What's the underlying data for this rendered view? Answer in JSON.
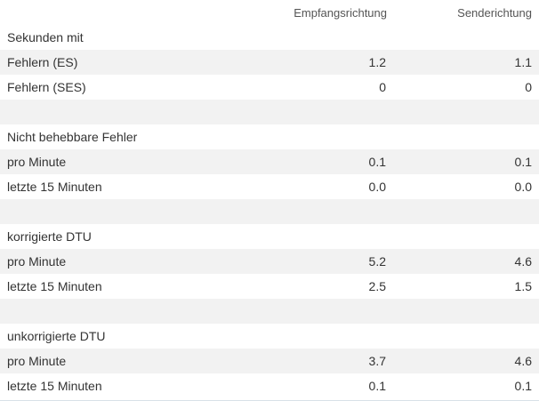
{
  "header": {
    "col_rx": "Empfangsrichtung",
    "col_tx": "Senderichtung"
  },
  "rows": [
    {
      "label": "Sekunden mit",
      "rx": "",
      "tx": ""
    },
    {
      "label": "Fehlern (ES)",
      "rx": "1.2",
      "tx": "1.1"
    },
    {
      "label": "Fehlern (SES)",
      "rx": "0",
      "tx": "0"
    },
    {
      "label": "",
      "rx": "",
      "tx": ""
    },
    {
      "label": "Nicht behebbare Fehler",
      "rx": "",
      "tx": ""
    },
    {
      "label": "pro Minute",
      "rx": "0.1",
      "tx": "0.1"
    },
    {
      "label": "letzte 15 Minuten",
      "rx": "0.0",
      "tx": "0.0"
    },
    {
      "label": "",
      "rx": "",
      "tx": ""
    },
    {
      "label": "korrigierte DTU",
      "rx": "",
      "tx": ""
    },
    {
      "label": "pro Minute",
      "rx": "5.2",
      "tx": "4.6"
    },
    {
      "label": "letzte 15 Minuten",
      "rx": "2.5",
      "tx": "1.5"
    },
    {
      "label": "",
      "rx": "",
      "tx": ""
    },
    {
      "label": "unkorrigierte DTU",
      "rx": "",
      "tx": ""
    },
    {
      "label": "pro Minute",
      "rx": "3.7",
      "tx": "4.6"
    },
    {
      "label": "letzte 15 Minuten",
      "rx": "0.1",
      "tx": "0.1"
    }
  ]
}
